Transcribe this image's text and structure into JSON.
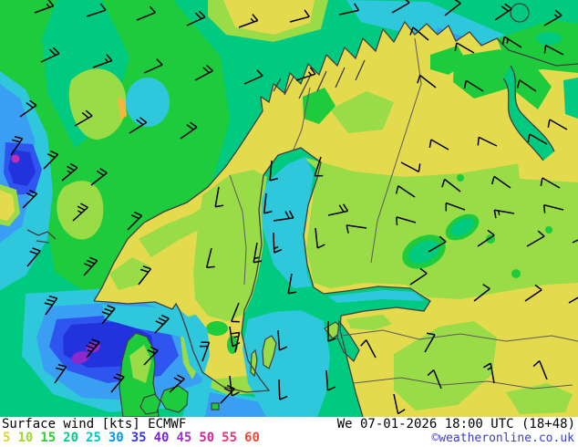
{
  "footer": {
    "title": "Surface wind [kts] ECMWF",
    "datetime": "We 07-01-2026 18:00 UTC (18+48)",
    "copyright": "©weatheronline.co.uk",
    "copyright_color": "#3c3ccc",
    "legend": {
      "values": [
        "5",
        "10",
        "15",
        "20",
        "25",
        "30",
        "35",
        "40",
        "45",
        "50",
        "55",
        "60"
      ],
      "colors": [
        "#d8d830",
        "#a0d830",
        "#30cc30",
        "#00cc88",
        "#00c8c8",
        "#0098e8",
        "#3838f0",
        "#7828d8",
        "#a030d0",
        "#cc2898",
        "#f03078",
        "#f04838"
      ]
    }
  },
  "map": {
    "palette": {
      "teal": "#00ca80",
      "green": "#1ecb3d",
      "light_green": "#9adb48",
      "yellow": "#e3da4e",
      "orange": "#f2b83e",
      "cyan": "#2fc7dc",
      "light_blue": "#3a9ff2",
      "blue": "#2e55f0",
      "dark_blue": "#2233dd",
      "purple": "#8d28cc",
      "magenta": "#c02cb4",
      "coastline": "#3f3f3f",
      "border": "#5a5a5a",
      "barb": "#000000"
    },
    "wind_barbs": [
      [
        38,
        14,
        -20,
        1,
        1
      ],
      [
        95,
        18,
        -18,
        1,
        0
      ],
      [
        150,
        22,
        -22,
        1,
        0
      ],
      [
        205,
        28,
        -25,
        2,
        0
      ],
      [
        262,
        30,
        -20,
        1,
        1
      ],
      [
        318,
        24,
        -15,
        1,
        0
      ],
      [
        372,
        16,
        -12,
        1,
        0
      ],
      [
        430,
        14,
        -30,
        1,
        0
      ],
      [
        488,
        17,
        -38,
        1,
        0
      ],
      [
        543,
        22,
        -34,
        2,
        0
      ],
      [
        597,
        28,
        -30,
        1,
        1
      ],
      [
        45,
        68,
        -25,
        2,
        0
      ],
      [
        102,
        74,
        -20,
        1,
        1
      ],
      [
        158,
        80,
        -24,
        1,
        0
      ],
      [
        214,
        88,
        -28,
        2,
        0
      ],
      [
        268,
        92,
        -24,
        1,
        0
      ],
      [
        325,
        88,
        -18,
        1,
        1
      ],
      [
        470,
        44,
        -140,
        1,
        0
      ],
      [
        520,
        58,
        -150,
        1,
        0
      ],
      [
        572,
        52,
        -148,
        1,
        1
      ],
      [
        618,
        60,
        -152,
        1,
        0
      ],
      [
        478,
        96,
        -142,
        1,
        0
      ],
      [
        530,
        100,
        -148,
        1,
        0
      ],
      [
        588,
        100,
        -146,
        1,
        0
      ],
      [
        622,
        142,
        -150,
        1,
        0
      ],
      [
        22,
        128,
        -35,
        2,
        0
      ],
      [
        82,
        138,
        -30,
        2,
        0
      ],
      [
        142,
        146,
        -32,
        2,
        0
      ],
      [
        198,
        152,
        -35,
        2,
        0
      ],
      [
        12,
        170,
        -55,
        2,
        0
      ],
      [
        48,
        185,
        -45,
        2,
        0
      ],
      [
        68,
        198,
        -40,
        2,
        1
      ],
      [
        100,
        203,
        -38,
        2,
        0
      ],
      [
        25,
        228,
        -45,
        2,
        0
      ],
      [
        80,
        242,
        -42,
        2,
        1
      ],
      [
        140,
        252,
        -45,
        2,
        0
      ],
      [
        30,
        292,
        -50,
        2,
        0
      ],
      [
        92,
        302,
        -48,
        3,
        0
      ],
      [
        152,
        312,
        -52,
        2,
        0
      ],
      [
        240,
        205,
        100,
        1,
        0
      ],
      [
        292,
        212,
        96,
        1,
        0
      ],
      [
        232,
        272,
        104,
        1,
        0
      ],
      [
        282,
        266,
        100,
        1,
        1
      ],
      [
        320,
        300,
        100,
        1,
        0
      ],
      [
        262,
        332,
        112,
        1,
        0
      ],
      [
        300,
        242,
        -8,
        2,
        0
      ],
      [
        360,
        236,
        -12,
        2,
        0
      ],
      [
        298,
        176,
        95,
        1,
        0
      ],
      [
        352,
        172,
        108,
        1,
        0
      ],
      [
        300,
        255,
        88,
        1,
        1
      ],
      [
        346,
        250,
        84,
        1,
        0
      ],
      [
        402,
        250,
        -172,
        1,
        0
      ],
      [
        456,
        244,
        -164,
        1,
        0
      ],
      [
        510,
        230,
        -160,
        1,
        0
      ],
      [
        564,
        234,
        -170,
        1,
        1
      ],
      [
        618,
        230,
        -166,
        1,
        0
      ],
      [
        440,
        178,
        28,
        1,
        0
      ],
      [
        492,
        164,
        -150,
        1,
        0
      ],
      [
        545,
        160,
        -154,
        1,
        0
      ],
      [
        600,
        158,
        -150,
        1,
        0
      ],
      [
        455,
        216,
        -146,
        1,
        0
      ],
      [
        505,
        210,
        -142,
        1,
        0
      ],
      [
        560,
        206,
        -145,
        1,
        0
      ],
      [
        614,
        206,
        -150,
        1,
        0
      ],
      [
        470,
        276,
        -30,
        1,
        0
      ],
      [
        524,
        270,
        -34,
        1,
        0
      ],
      [
        578,
        270,
        -30,
        1,
        0
      ],
      [
        628,
        266,
        -26,
        1,
        0
      ],
      [
        450,
        312,
        -34,
        1,
        0
      ],
      [
        520,
        330,
        -38,
        1,
        0
      ],
      [
        576,
        330,
        -34,
        1,
        0
      ],
      [
        624,
        332,
        -30,
        1,
        0
      ],
      [
        50,
        345,
        -55,
        3,
        0
      ],
      [
        112,
        355,
        -50,
        3,
        0
      ],
      [
        170,
        365,
        -46,
        3,
        0
      ],
      [
        95,
        392,
        -50,
        3,
        1
      ],
      [
        158,
        400,
        -46,
        2,
        0
      ],
      [
        60,
        420,
        -55,
        2,
        0
      ],
      [
        122,
        430,
        -50,
        2,
        0
      ],
      [
        186,
        430,
        -42,
        2,
        0
      ],
      [
        242,
        442,
        -46,
        2,
        0
      ],
      [
        222,
        396,
        -70,
        2,
        0
      ],
      [
        258,
        386,
        -78,
        1,
        1
      ],
      [
        252,
        358,
        82,
        1,
        0
      ],
      [
        305,
        362,
        86,
        1,
        0
      ],
      [
        360,
        352,
        90,
        1,
        0
      ],
      [
        252,
        412,
        84,
        1,
        0
      ],
      [
        306,
        416,
        88,
        1,
        0
      ],
      [
        358,
        406,
        86,
        1,
        0
      ],
      [
        412,
        392,
        -118,
        1,
        0
      ],
      [
        466,
        386,
        -60,
        1,
        0
      ],
      [
        432,
        432,
        78,
        1,
        0
      ],
      [
        484,
        426,
        -112,
        1,
        0
      ],
      [
        542,
        420,
        -100,
        1,
        1
      ],
      [
        600,
        416,
        -112,
        1,
        0
      ]
    ]
  }
}
